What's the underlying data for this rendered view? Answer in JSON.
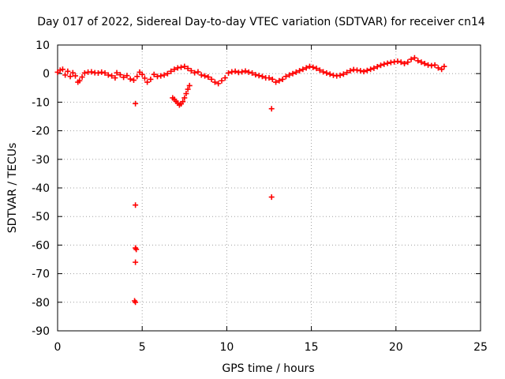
{
  "chart_data": {
    "type": "scatter",
    "title": "Day 017 of 2022, Sidereal Day-to-day VTEC variation (SDTVAR) for receiver cn14",
    "xlabel": "GPS time / hours",
    "ylabel": "SDTVAR / TECUs",
    "xlim": [
      0,
      25
    ],
    "ylim": [
      -90,
      10
    ],
    "xticks": [
      0,
      5,
      10,
      15,
      20,
      25
    ],
    "yticks": [
      10,
      0,
      -10,
      -20,
      -30,
      -40,
      -50,
      -60,
      -70,
      -80,
      -90
    ],
    "xtick_labels": [
      "0",
      "5",
      "10",
      "15",
      "20",
      "25"
    ],
    "ytick_labels": [
      "10",
      "0",
      "-10",
      "-20",
      "-30",
      "-40",
      "-50",
      "-60",
      "-70",
      "-80",
      "-90"
    ],
    "grid": true,
    "series": [
      {
        "name": "SDTVAR",
        "color": "#ff0000",
        "marker": "plus",
        "points": [
          [
            0.0,
            0.5
          ],
          [
            0.15,
            1.2
          ],
          [
            0.3,
            1.5
          ],
          [
            0.45,
            -0.5
          ],
          [
            0.6,
            0.8
          ],
          [
            0.75,
            -1.0
          ],
          [
            0.9,
            0.3
          ],
          [
            1.05,
            -0.8
          ],
          [
            1.2,
            -3.0
          ],
          [
            1.3,
            -2.5
          ],
          [
            1.45,
            -1.2
          ],
          [
            1.6,
            0.2
          ],
          [
            1.8,
            0.5
          ],
          [
            2.0,
            0.6
          ],
          [
            2.2,
            0.3
          ],
          [
            2.4,
            0.2
          ],
          [
            2.6,
            0.5
          ],
          [
            2.8,
            0.2
          ],
          [
            3.0,
            -0.5
          ],
          [
            3.2,
            -0.8
          ],
          [
            3.4,
            -1.5
          ],
          [
            3.5,
            0.3
          ],
          [
            3.7,
            -0.4
          ],
          [
            3.9,
            -1.3
          ],
          [
            4.1,
            -0.7
          ],
          [
            4.3,
            -1.9
          ],
          [
            4.5,
            -2.3
          ],
          [
            4.7,
            -1.0
          ],
          [
            4.85,
            0.5
          ],
          [
            5.0,
            -0.3
          ],
          [
            5.15,
            -1.6
          ],
          [
            5.3,
            -3.0
          ],
          [
            5.5,
            -2.0
          ],
          [
            5.7,
            -0.3
          ],
          [
            5.9,
            -1.0
          ],
          [
            6.1,
            -0.8
          ],
          [
            6.3,
            -0.5
          ],
          [
            6.5,
            0.0
          ],
          [
            6.7,
            0.8
          ],
          [
            6.9,
            1.5
          ],
          [
            7.1,
            2.0
          ],
          [
            7.3,
            2.2
          ],
          [
            7.5,
            2.5
          ],
          [
            7.7,
            1.8
          ],
          [
            7.9,
            1.0
          ],
          [
            8.1,
            0.3
          ],
          [
            8.3,
            0.6
          ],
          [
            8.5,
            -0.5
          ],
          [
            8.7,
            -0.8
          ],
          [
            8.9,
            -1.2
          ],
          [
            9.1,
            -2.0
          ],
          [
            9.3,
            -3.0
          ],
          [
            9.5,
            -3.5
          ],
          [
            9.7,
            -2.5
          ],
          [
            9.9,
            -1.5
          ],
          [
            10.1,
            0.2
          ],
          [
            10.3,
            0.6
          ],
          [
            10.5,
            0.8
          ],
          [
            10.7,
            0.4
          ],
          [
            10.9,
            0.6
          ],
          [
            11.1,
            0.9
          ],
          [
            11.3,
            0.5
          ],
          [
            11.5,
            0.2
          ],
          [
            11.7,
            -0.4
          ],
          [
            11.9,
            -0.7
          ],
          [
            12.1,
            -1.0
          ],
          [
            12.3,
            -1.5
          ],
          [
            12.5,
            -1.5
          ],
          [
            12.7,
            -2.0
          ],
          [
            12.9,
            -3.0
          ],
          [
            13.1,
            -2.5
          ],
          [
            13.3,
            -2.0
          ],
          [
            13.5,
            -1.0
          ],
          [
            13.7,
            -0.5
          ],
          [
            13.9,
            0.0
          ],
          [
            14.1,
            0.5
          ],
          [
            14.3,
            1.0
          ],
          [
            14.5,
            1.5
          ],
          [
            14.7,
            2.0
          ],
          [
            14.9,
            2.5
          ],
          [
            15.1,
            2.2
          ],
          [
            15.3,
            1.8
          ],
          [
            15.5,
            1.2
          ],
          [
            15.7,
            0.6
          ],
          [
            15.9,
            0.2
          ],
          [
            16.1,
            -0.2
          ],
          [
            16.3,
            -0.6
          ],
          [
            16.5,
            -0.8
          ],
          [
            16.7,
            -0.6
          ],
          [
            16.9,
            -0.2
          ],
          [
            17.1,
            0.4
          ],
          [
            17.3,
            1.0
          ],
          [
            17.5,
            1.4
          ],
          [
            17.7,
            1.2
          ],
          [
            17.9,
            1.0
          ],
          [
            18.1,
            0.7
          ],
          [
            18.3,
            1.1
          ],
          [
            18.5,
            1.5
          ],
          [
            18.7,
            1.9
          ],
          [
            18.9,
            2.4
          ],
          [
            19.1,
            2.9
          ],
          [
            19.3,
            3.3
          ],
          [
            19.5,
            3.6
          ],
          [
            19.7,
            3.9
          ],
          [
            19.9,
            4.1
          ],
          [
            20.1,
            4.3
          ],
          [
            20.3,
            4.0
          ],
          [
            20.5,
            3.5
          ],
          [
            20.7,
            4.0
          ],
          [
            20.9,
            5.0
          ],
          [
            21.1,
            5.5
          ],
          [
            21.3,
            4.5
          ],
          [
            21.5,
            4.0
          ],
          [
            21.7,
            3.5
          ],
          [
            21.9,
            3.0
          ],
          [
            22.1,
            2.8
          ],
          [
            22.3,
            3.0
          ],
          [
            22.5,
            2.0
          ],
          [
            22.7,
            1.5
          ],
          [
            22.85,
            2.5
          ],
          [
            6.8,
            -8.5
          ],
          [
            6.9,
            -9.0
          ],
          [
            7.0,
            -9.7
          ],
          [
            7.1,
            -10.3
          ],
          [
            7.2,
            -11.0
          ],
          [
            7.3,
            -10.6
          ],
          [
            7.4,
            -9.8
          ],
          [
            7.5,
            -8.5
          ],
          [
            7.6,
            -7.0
          ],
          [
            7.7,
            -5.5
          ],
          [
            7.8,
            -4.2
          ],
          [
            4.6,
            -10.5
          ],
          [
            4.6,
            -46.0
          ],
          [
            4.6,
            -61.0
          ],
          [
            4.65,
            -61.5
          ],
          [
            4.6,
            -66.0
          ],
          [
            4.55,
            -79.5
          ],
          [
            4.6,
            -80.0
          ],
          [
            12.65,
            -12.3
          ],
          [
            12.65,
            -43.2
          ]
        ]
      }
    ]
  }
}
